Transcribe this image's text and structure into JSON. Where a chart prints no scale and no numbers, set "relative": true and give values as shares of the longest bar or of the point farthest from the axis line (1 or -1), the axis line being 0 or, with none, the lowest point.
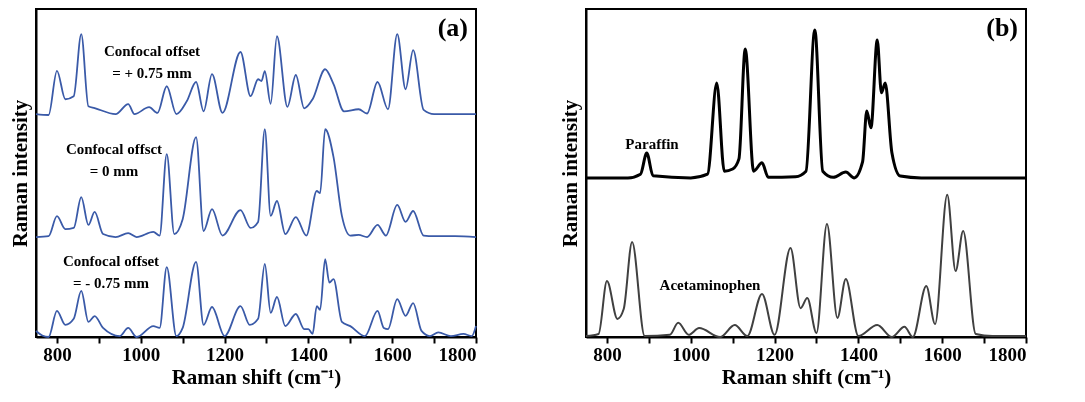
{
  "chart_data": [
    {
      "type": "line",
      "title": "(a)",
      "xlabel": "Raman shift (cm⁻¹)",
      "ylabel": "Raman intensity",
      "relative": true,
      "legend": false,
      "tick_labels": "x",
      "grid": false,
      "xlim": [
        750,
        1800
      ],
      "xticks": [
        800,
        {
          "value": 900,
          "label": null
        },
        1000,
        {
          "value": 1100,
          "label": null
        },
        1200,
        {
          "value": 1300,
          "label": null
        },
        1400,
        {
          "value": 1500,
          "label": null
        },
        1600,
        {
          "value": 1700,
          "label": null
        },
        1800
      ],
      "series": [
        {
          "name": "Confocal offset\n= + 0.75 mm",
          "color": "#3a5aa8",
          "x": [
            750,
            780,
            800,
            820,
            840,
            858,
            875,
            890,
            940,
            970,
            985,
            1020,
            1040,
            1062,
            1085,
            1110,
            1132,
            1150,
            1170,
            1195,
            1238,
            1262,
            1280,
            1288,
            1296,
            1310,
            1325,
            1350,
            1370,
            1390,
            1410,
            1440,
            1460,
            1485,
            1520,
            1540,
            1565,
            1590,
            1612,
            1632,
            1650,
            1675,
            1700,
            1750,
            1800
          ],
          "values": [
            0.736,
            0.733,
            0.879,
            0.785,
            0.795,
            1.0,
            0.762,
            0.756,
            0.736,
            0.769,
            0.736,
            0.759,
            0.74,
            0.828,
            0.736,
            0.779,
            0.842,
            0.745,
            0.868,
            0.74,
            0.941,
            0.795,
            0.851,
            0.845,
            0.878,
            0.77,
            0.993,
            0.76,
            0.865,
            0.755,
            0.785,
            0.884,
            0.835,
            0.745,
            0.752,
            0.738,
            0.842,
            0.752,
            1.0,
            0.818,
            0.947,
            0.75,
            0.736,
            0.736,
            0.736
          ]
        },
        {
          "name": "Confocal offsct\n= 0 mm",
          "color": "#3a5aa8",
          "x": [
            750,
            780,
            800,
            820,
            840,
            858,
            875,
            890,
            910,
            940,
            970,
            990,
            1030,
            1045,
            1062,
            1080,
            1100,
            1132,
            1150,
            1170,
            1195,
            1238,
            1262,
            1280,
            1296,
            1310,
            1325,
            1345,
            1370,
            1395,
            1420,
            1428,
            1440,
            1460,
            1480,
            1500,
            1520,
            1540,
            1565,
            1585,
            1612,
            1632,
            1650,
            1675,
            1700,
            1750,
            1800
          ],
          "values": [
            0.33,
            0.333,
            0.399,
            0.356,
            0.36,
            0.462,
            0.37,
            0.413,
            0.34,
            0.33,
            0.343,
            0.33,
            0.347,
            0.335,
            0.604,
            0.34,
            0.389,
            0.66,
            0.35,
            0.422,
            0.335,
            0.419,
            0.36,
            0.38,
            0.686,
            0.4,
            0.449,
            0.34,
            0.396,
            0.335,
            0.482,
            0.475,
            0.686,
            0.594,
            0.4,
            0.335,
            0.337,
            0.33,
            0.37,
            0.335,
            0.436,
            0.38,
            0.416,
            0.335,
            0.333,
            0.333,
            0.33
          ]
        },
        {
          "name": "Confocal offset\n= - 0.75 mm",
          "color": "#3a5aa8",
          "x": [
            750,
            765,
            780,
            800,
            820,
            840,
            858,
            875,
            890,
            910,
            950,
            970,
            990,
            1030,
            1045,
            1062,
            1085,
            1100,
            1132,
            1150,
            1170,
            1200,
            1238,
            1260,
            1280,
            1296,
            1310,
            1325,
            1345,
            1370,
            1390,
            1400,
            1410,
            1420,
            1428,
            1440,
            1450,
            1460,
            1480,
            1500,
            1535,
            1565,
            1580,
            1590,
            1612,
            1632,
            1650,
            1670,
            1690,
            1710,
            1740,
            1770,
            1790,
            1800
          ],
          "values": [
            0.02,
            0.005,
            0,
            0.086,
            0.04,
            0.06,
            0.152,
            0.05,
            0.069,
            0.03,
            0.003,
            0.03,
            0,
            0.036,
            0.03,
            0.231,
            0.003,
            0.03,
            0.248,
            0.04,
            0.099,
            0.003,
            0.102,
            0.04,
            0.06,
            0.241,
            0.08,
            0.132,
            0.036,
            0.076,
            0.026,
            0.026,
            0.01,
            0.102,
            0.09,
            0.257,
            0.18,
            0.191,
            0.05,
            0.036,
            0.003,
            0.086,
            0.03,
            0.026,
            0.125,
            0.07,
            0.112,
            0.02,
            0.003,
            0.015,
            0.003,
            0.01,
            0.003,
            0.036
          ]
        }
      ]
    },
    {
      "type": "line",
      "title": "(b)",
      "xlabel": "Raman shift (cm⁻¹)",
      "ylabel": "Raman intensity",
      "relative": true,
      "legend": false,
      "tick_labels": "x",
      "grid": false,
      "xlim": [
        750,
        1800
      ],
      "xticks": [
        800,
        {
          "value": 900,
          "label": null
        },
        1000,
        {
          "value": 1100,
          "label": null
        },
        1200,
        {
          "value": 1300,
          "label": null
        },
        1400,
        {
          "value": 1500,
          "label": null
        },
        1600,
        {
          "value": 1700,
          "label": null
        },
        1800
      ],
      "series": [
        {
          "name": "Paraffin",
          "color": "#000000",
          "x": [
            750,
            850,
            880,
            895,
            910,
            1000,
            1040,
            1062,
            1080,
            1100,
            1115,
            1130,
            1150,
            1170,
            1185,
            1250,
            1275,
            1296,
            1315,
            1340,
            1370,
            1390,
            1410,
            1420,
            1430,
            1445,
            1455,
            1464,
            1480,
            1500,
            1550,
            1800
          ],
          "values": [
            0.518,
            0.518,
            0.53,
            0.599,
            0.525,
            0.518,
            0.53,
            0.827,
            0.54,
            0.547,
            0.58,
            0.938,
            0.54,
            0.567,
            0.52,
            0.522,
            0.54,
            1.0,
            0.54,
            0.52,
            0.537,
            0.518,
            0.57,
            0.736,
            0.681,
            0.967,
            0.795,
            0.827,
            0.6,
            0.524,
            0.518,
            0.518
          ]
        },
        {
          "name": "Acetaminophen",
          "color": "#404040",
          "x": [
            750,
            780,
            800,
            825,
            840,
            860,
            890,
            950,
            970,
            995,
            1020,
            1070,
            1105,
            1135,
            1170,
            1200,
            1238,
            1262,
            1278,
            1300,
            1325,
            1350,
            1370,
            1400,
            1445,
            1480,
            1510,
            1530,
            1562,
            1583,
            1612,
            1632,
            1650,
            1680,
            1720,
            1800
          ],
          "values": [
            0.003,
            0.01,
            0.182,
            0.059,
            0.091,
            0.309,
            0.003,
            0.007,
            0.046,
            0.007,
            0.029,
            0,
            0.039,
            0.003,
            0.14,
            0.007,
            0.29,
            0.094,
            0.127,
            0.013,
            0.368,
            0.062,
            0.189,
            0.003,
            0.039,
            0,
            0.033,
            0,
            0.166,
            0.042,
            0.463,
            0.215,
            0.345,
            0.01,
            0.003,
            0.003
          ]
        }
      ]
    }
  ]
}
